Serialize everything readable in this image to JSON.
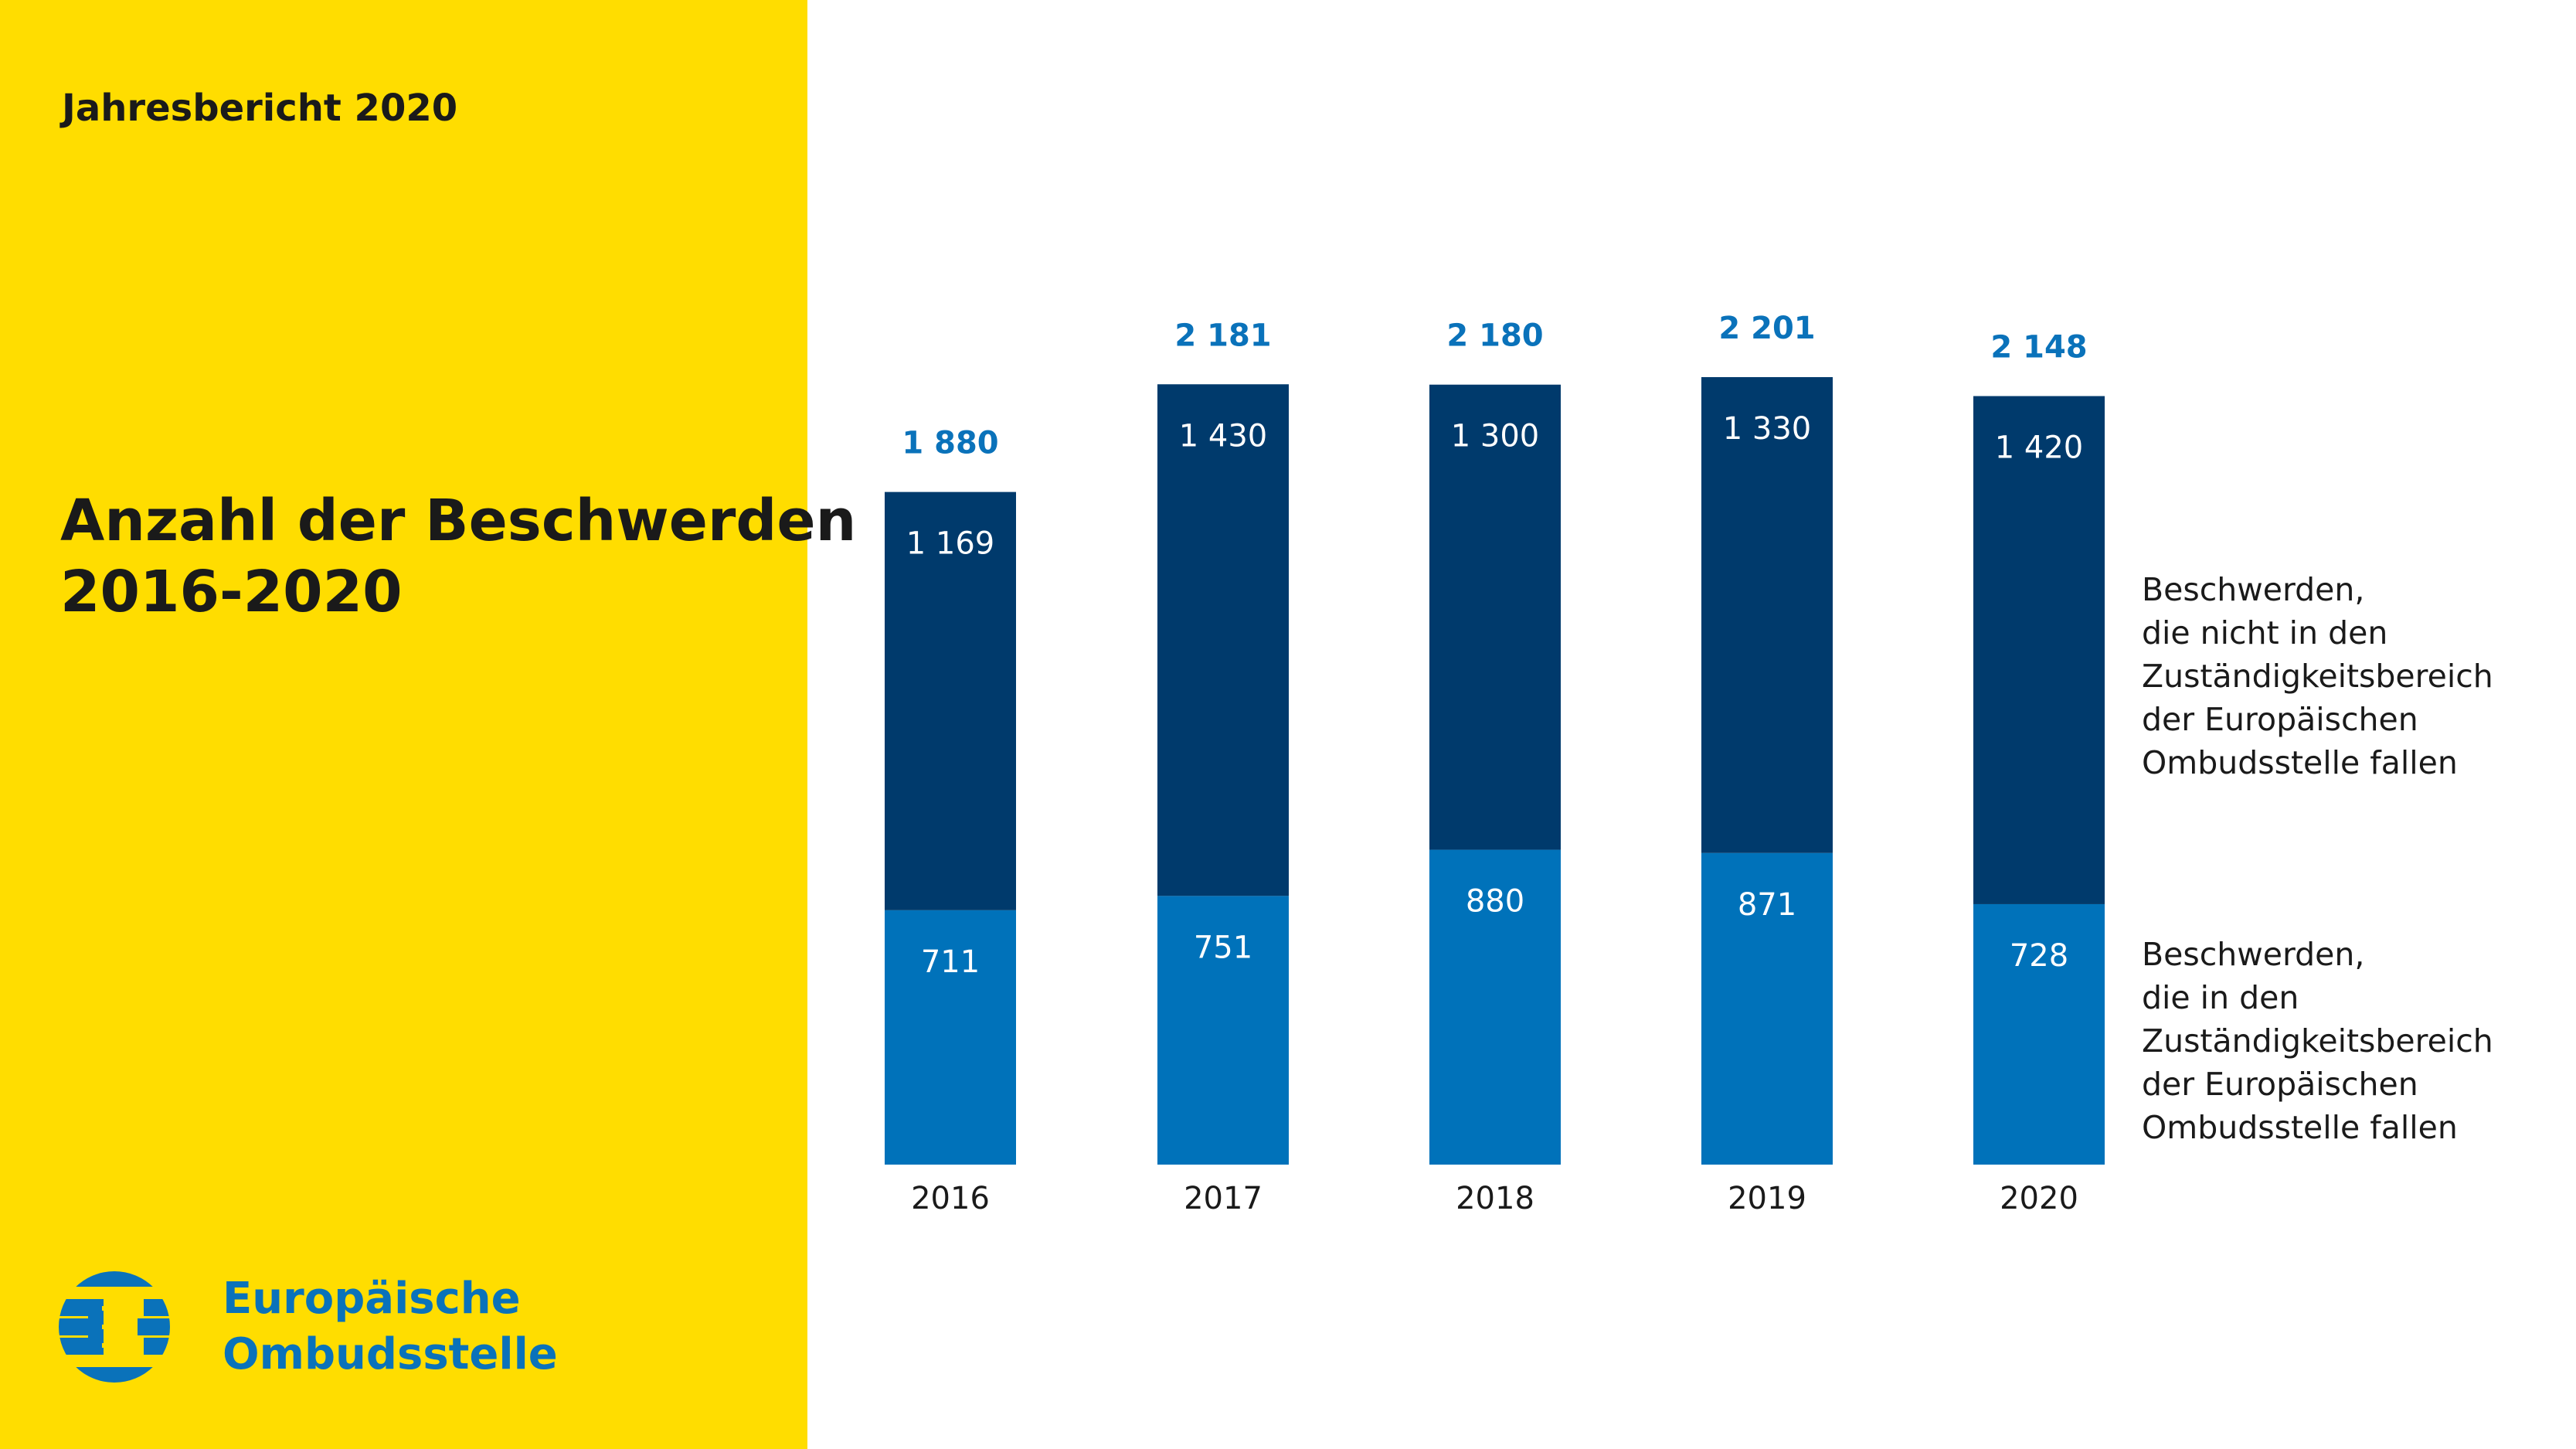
{
  "header": {
    "report_label": "Jahresbericht 2020"
  },
  "title": {
    "line1": "Anzahl der Beschwerden",
    "line2": "2016-2020"
  },
  "logo": {
    "icon": "european-ombudsman-logo-icon",
    "line1": "Europäische",
    "line2": "Ombudsstelle"
  },
  "colors": {
    "panel": "#FFDD00",
    "outside_mandate": "#003A6C",
    "inside_mandate": "#0072BA",
    "total_label": "#0A72BA"
  },
  "chart_data": {
    "type": "bar",
    "stacked": true,
    "categories": [
      "2016",
      "2017",
      "2018",
      "2019",
      "2020"
    ],
    "series": [
      {
        "name": "Beschwerden, die in den Zuständigkeitsbereich der Europäischen Ombudsstelle fallen",
        "color": "#0072BA",
        "values": [
          711,
          751,
          880,
          871,
          728
        ],
        "labels": [
          "711",
          "751",
          "880",
          "871",
          "728"
        ]
      },
      {
        "name": "Beschwerden, die nicht in den Zuständigkeitsbereich der Europäischen Ombudsstelle fallen",
        "color": "#003A6C",
        "values": [
          1169,
          1430,
          1300,
          1330,
          1420
        ],
        "labels": [
          "1 169",
          "1 430",
          "1 300",
          "1 330",
          "1 420"
        ]
      }
    ],
    "totals": [
      1880,
      2181,
      2180,
      2201,
      2148
    ],
    "total_labels": [
      "1 880",
      "2 181",
      "2 180",
      "2 201",
      "2 148"
    ],
    "ylim": [
      0,
      2201
    ],
    "grid": false,
    "legend": "right",
    "legend_lines": {
      "outside": [
        "Beschwerden,",
        "die nicht in den",
        "Zuständigkeitsbereich",
        "der Europäischen",
        "Ombudsstelle fallen"
      ],
      "inside": [
        "Beschwerden,",
        "die in den",
        "Zuständigkeitsbereich",
        "der Europäischen",
        "Ombudsstelle fallen"
      ]
    }
  }
}
